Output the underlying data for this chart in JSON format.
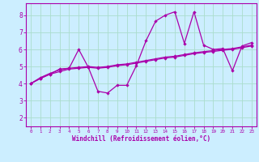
{
  "xlabel": "Windchill (Refroidissement éolien,°C)",
  "xlim": [
    -0.5,
    23.5
  ],
  "ylim": [
    1.5,
    8.7
  ],
  "yticks": [
    2,
    3,
    4,
    5,
    6,
    7,
    8
  ],
  "xticks": [
    0,
    1,
    2,
    3,
    4,
    5,
    6,
    7,
    8,
    9,
    10,
    11,
    12,
    13,
    14,
    15,
    16,
    17,
    18,
    19,
    20,
    21,
    22,
    23
  ],
  "bg_color": "#cceeff",
  "line_color": "#aa00aa",
  "grid_color": "#aaddcc",
  "line1_y": [
    4.0,
    4.3,
    4.55,
    4.85,
    4.9,
    6.0,
    4.95,
    3.55,
    3.45,
    3.9,
    3.9,
    5.05,
    6.5,
    7.65,
    8.0,
    8.2,
    6.35,
    8.2,
    6.25,
    6.0,
    6.05,
    4.75,
    6.2,
    6.4
  ],
  "line2_y": [
    4.0,
    4.3,
    4.55,
    4.7,
    4.85,
    4.9,
    4.95,
    4.9,
    4.95,
    5.05,
    5.1,
    5.2,
    5.3,
    5.4,
    5.5,
    5.55,
    5.65,
    5.75,
    5.82,
    5.88,
    5.95,
    6.0,
    6.1,
    6.2
  ],
  "line3_y": [
    4.0,
    4.35,
    4.6,
    4.8,
    4.9,
    4.95,
    5.0,
    4.95,
    5.0,
    5.1,
    5.15,
    5.25,
    5.35,
    5.45,
    5.55,
    5.6,
    5.7,
    5.8,
    5.87,
    5.93,
    6.0,
    6.05,
    6.15,
    6.25
  ]
}
